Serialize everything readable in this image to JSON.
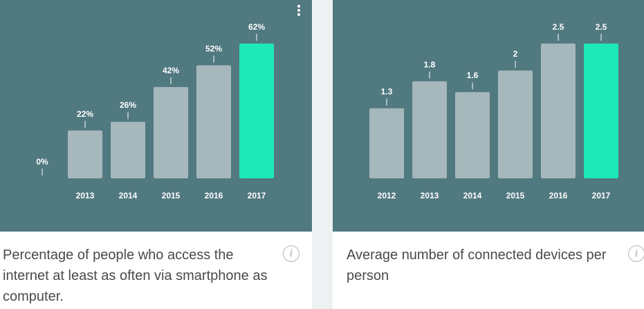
{
  "chart_data": [
    {
      "type": "bar",
      "categories": [
        "",
        "2013",
        "2014",
        "2015",
        "2016",
        "2017"
      ],
      "values": [
        0,
        22,
        26,
        42,
        52,
        62
      ],
      "value_labels": [
        "0%",
        "22%",
        "26%",
        "42%",
        "52%",
        "62%"
      ],
      "highlight_index": 5,
      "ylim": [
        0,
        62
      ],
      "title": "Percentage of people who access the internet at least as often via smartphone as computer.",
      "xlabel": "",
      "ylabel": ""
    },
    {
      "type": "bar",
      "categories": [
        "2012",
        "2013",
        "2014",
        "2015",
        "2016",
        "2017"
      ],
      "values": [
        1.3,
        1.8,
        1.6,
        2,
        2.5,
        2.5
      ],
      "value_labels": [
        "1.3",
        "1.8",
        "1.6",
        "2",
        "2.5",
        "2.5"
      ],
      "highlight_index": 5,
      "ylim": [
        0,
        2.5
      ],
      "title": "Average number of connected devices per person",
      "xlabel": "",
      "ylabel": ""
    }
  ],
  "colors": {
    "panel": "#517980",
    "bar": "#a6b8bb",
    "highlight": "#1de9b6",
    "text": "#ffffff"
  },
  "icons": {
    "menu": "more-vertical-icon",
    "info": "info-icon",
    "info_glyph": "i"
  }
}
